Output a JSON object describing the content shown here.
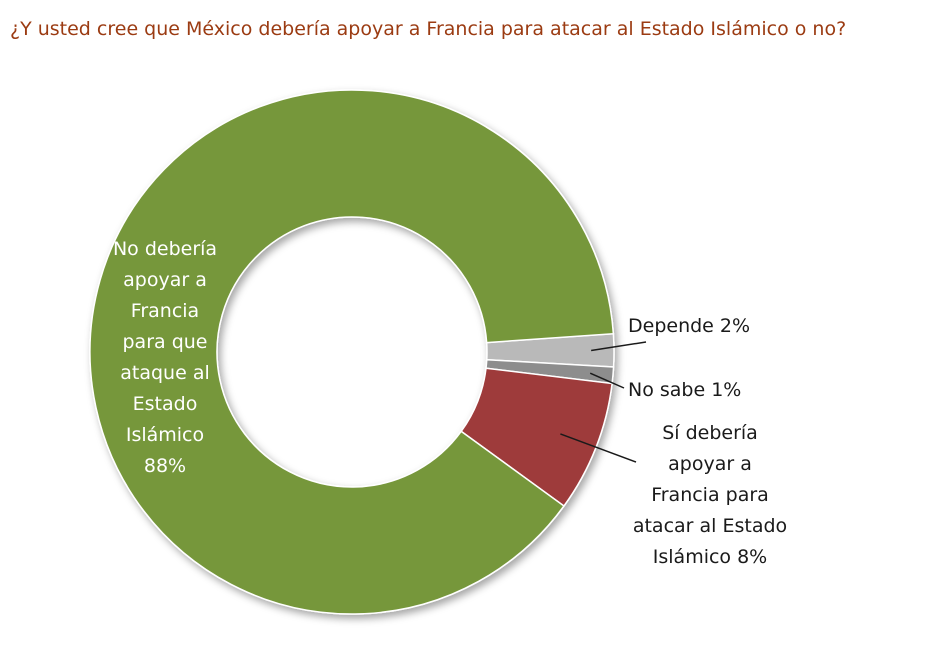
{
  "chart_data": {
    "type": "pie",
    "style": "donut",
    "title": "¿Y usted cree que México debería apoyar a Francia para atacar al Estado Islámico o no?",
    "legend": "none",
    "slices": [
      {
        "name": "Depende",
        "value": 2,
        "color": "#b9b9b9",
        "label_lines": [
          "Depende  2%"
        ]
      },
      {
        "name": "No sabe",
        "value": 1,
        "color": "#8d8d8d",
        "label_lines": [
          "No sabe  1%"
        ]
      },
      {
        "name": "Sí debería apoyar a Francia para atacar al Estado Islámico",
        "value": 8,
        "color": "#9e3a3a",
        "label_lines": [
          "Sí debería",
          "apoyar a",
          "Francia para",
          "atacar al Estado",
          "Islámico 8%"
        ]
      },
      {
        "name": "No debería apoyar a Francia para que ataque al Estado Islámico",
        "value": 88,
        "color": "#76973a",
        "label_lines": [
          "No debería",
          "apoyar a",
          "Francia",
          "para que",
          "ataque al",
          "Estado",
          "Islámico",
          "88%"
        ]
      }
    ]
  }
}
